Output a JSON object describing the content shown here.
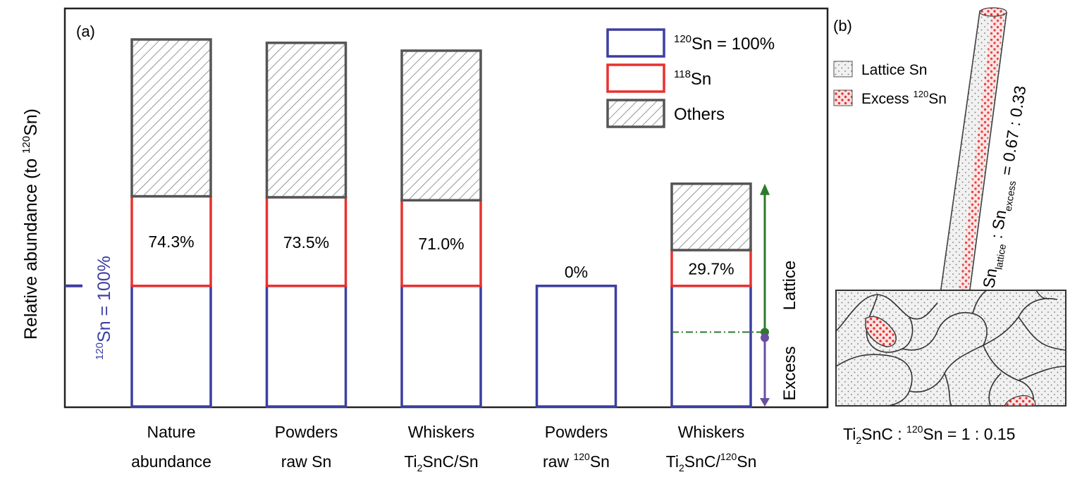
{
  "panel_a": {
    "label": "(a)"
  },
  "panel_b": {
    "label": "(b)",
    "legend": {
      "lattice": "Lattice Sn",
      "excess_prefix": "Excess ",
      "excess_sup": "120",
      "excess_suffix": "Sn"
    },
    "ratio": {
      "sn": "Sn",
      "sub_lattice": "lattice",
      "sep": " : ",
      "sub_excess": "excess",
      "value": " = 0.67 : 0.33"
    },
    "composition": {
      "ti": "Ti",
      "ti_sub": "2",
      "snc": "SnC : ",
      "sup": "120",
      "rest": "Sn = 1 : 0.15"
    }
  },
  "colors": {
    "base": "#3b3fa0",
    "sn118": "#e8312f",
    "others": "#555555",
    "lattice_arrow": "#2d7a2d",
    "excess_arrow": "#6a4fa0",
    "base_label": "#3b3fa0",
    "dots": "#e8312f"
  },
  "chart_data": {
    "type": "bar",
    "stacked": true,
    "ylabel": {
      "pre": "Relative abundance (to ",
      "sup": "120",
      "post": "Sn)"
    },
    "base_label": {
      "sup": "120",
      "text": "Sn = 100%"
    },
    "categories": [
      {
        "l1": "Nature",
        "l2": "abundance"
      },
      {
        "l1": "Powders",
        "l2": "raw Sn"
      },
      {
        "l1": "Whiskers",
        "l2": "Ti",
        "l2sub": "2",
        "l2b": "SnC/Sn"
      },
      {
        "l1": "Powders",
        "l2": "raw ",
        "l2sup": "120",
        "l2b": "Sn"
      },
      {
        "l1": "Whiskers",
        "l2": "Ti",
        "l2sub": "2",
        "l2b": "SnC/",
        "l2sup": "120",
        "l2c": "Sn"
      }
    ],
    "series": [
      {
        "key": "base",
        "values": [
          100,
          100,
          100,
          100,
          100
        ]
      },
      {
        "key": "sn118",
        "values": [
          74.3,
          73.5,
          71.0,
          0,
          29.7
        ]
      },
      {
        "key": "others",
        "values": [
          130,
          128,
          124,
          0,
          55
        ]
      }
    ],
    "value_labels": [
      "74.3%",
      "73.5%",
      "71.0%",
      "0%",
      "29.7%"
    ],
    "legend": [
      {
        "key": "base",
        "sup": "120",
        "text": "Sn = 100%"
      },
      {
        "key": "sn118",
        "sup": "118",
        "text": "Sn"
      },
      {
        "key": "others",
        "sup": "",
        "text": "Others"
      }
    ],
    "annotations": {
      "lattice": "Lattice",
      "excess": "Excess",
      "excess_level": 57
    },
    "ylim": [
      0,
      330
    ]
  }
}
